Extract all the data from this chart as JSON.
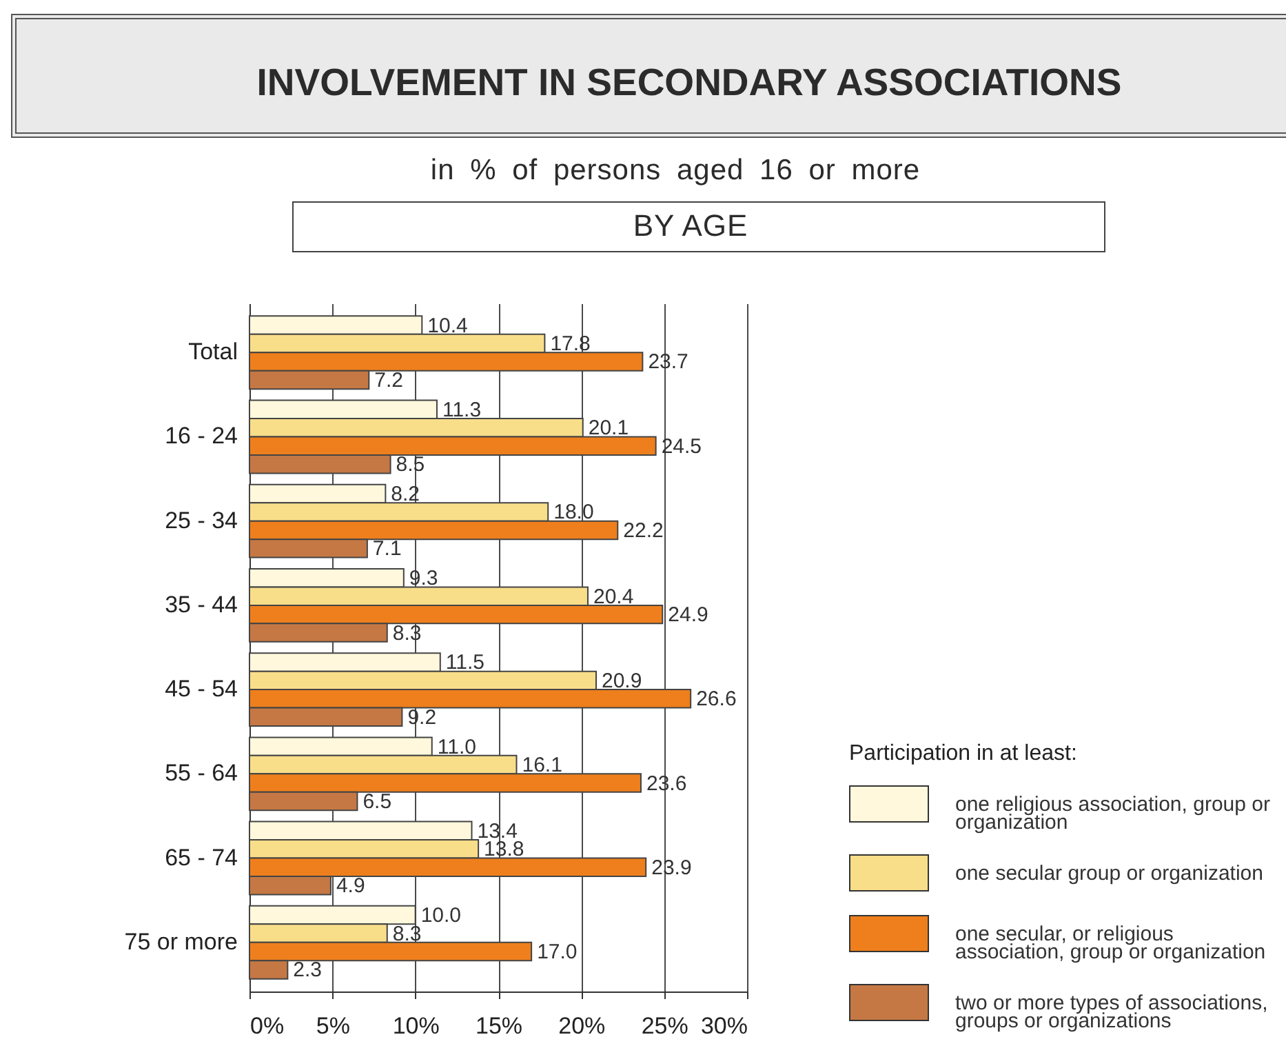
{
  "chart_data": {
    "type": "bar",
    "orientation": "horizontal",
    "title": "INVOLVEMENT IN SECONDARY ASSOCIATIONS",
    "subtitle": "in % of persons aged 16 or more",
    "annotations": [
      "BY AGE"
    ],
    "categories": [
      "Total",
      "16 - 24",
      "25 - 34",
      "35 - 44",
      "45 - 54",
      "55 - 64",
      "65 - 74",
      "75 or more"
    ],
    "series": [
      {
        "name": "one religious association, group or organization",
        "color": "#fff8dc",
        "values": [
          10.4,
          11.3,
          8.2,
          9.3,
          11.5,
          11.0,
          13.4,
          10.0
        ],
        "value_labels": [
          "10.4",
          "11.3",
          "8.2",
          "9.3",
          "11.5",
          "11.0",
          "13.4",
          "10.0"
        ]
      },
      {
        "name": "one secular group or organization",
        "color": "#f9de8a",
        "values": [
          17.8,
          20.1,
          18.0,
          20.4,
          20.9,
          16.1,
          13.8,
          8.3
        ],
        "value_labels": [
          "17.8",
          "20.1",
          "18.0",
          "20.4",
          "20.9",
          "16.1",
          "13.8",
          "8.3"
        ]
      },
      {
        "name": "one secular, or religious association, group or organization",
        "color": "#ee7f1c",
        "values": [
          23.7,
          24.5,
          22.2,
          24.9,
          26.6,
          23.6,
          23.9,
          17.0
        ],
        "value_labels": [
          "23.7",
          "24.5",
          "22.2",
          "24.9",
          "26.6",
          "23.6",
          "23.9",
          "17.0"
        ]
      },
      {
        "name": "two or more types of associations, groups or organizations",
        "color": "#c57844",
        "values": [
          7.2,
          8.5,
          7.1,
          8.3,
          9.2,
          6.5,
          4.9,
          2.3
        ],
        "value_labels": [
          "7.2",
          "8.5",
          "7.1",
          "8.3",
          "9.2",
          "6.5",
          "4.9",
          "2.3"
        ]
      }
    ],
    "legend_title": "Participation in at least:",
    "xlim": [
      0,
      30
    ],
    "xticks": [
      {
        "value": 0,
        "label": "0%"
      },
      {
        "value": 5,
        "label": "5%"
      },
      {
        "value": 10,
        "label": "10%"
      },
      {
        "value": 15,
        "label": "15%"
      },
      {
        "value": 20,
        "label": "20%"
      },
      {
        "value": 25,
        "label": "25%"
      },
      {
        "value": 30,
        "label": "30%"
      }
    ],
    "grid": "x",
    "legend": "bottom right"
  }
}
